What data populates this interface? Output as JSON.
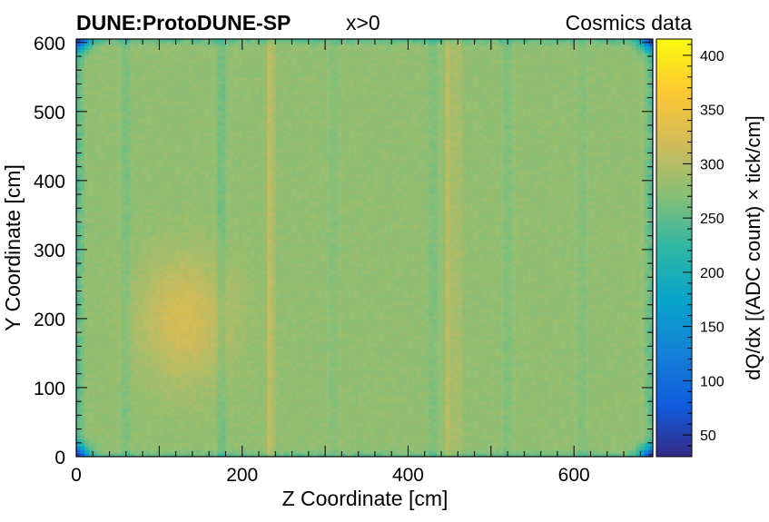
{
  "header": {
    "experiment": "DUNE:ProtoDUNE-SP",
    "selection": "x>0",
    "dataset": "Cosmics data"
  },
  "chart_data": {
    "type": "heatmap",
    "xlabel": "Z Coordinate [cm]",
    "ylabel": "Y Coordinate [cm]",
    "zlabel": "dQ/dx [(ADC count) × tick/cm]",
    "xlim": [
      0,
      695
    ],
    "ylim": [
      0,
      605
    ],
    "zlim": [
      30,
      415
    ],
    "x_ticks": [
      0,
      200,
      400,
      600
    ],
    "y_ticks": [
      0,
      100,
      200,
      300,
      400,
      500,
      600
    ],
    "z_ticks": [
      50,
      100,
      150,
      200,
      250,
      300,
      350,
      400
    ],
    "colormap": [
      "#352a87",
      "#0f5cdd",
      "#1481d6",
      "#06a4ca",
      "#2eb7a4",
      "#87bf77",
      "#d1bb59",
      "#fec832",
      "#f9fb0e"
    ],
    "grid": false,
    "cell_size_cm": [
      5,
      5
    ],
    "typical_value": 278,
    "features": {
      "bright_columns": [
        {
          "z": 232,
          "delta": 28
        },
        {
          "z": 237,
          "delta": 16
        },
        {
          "z": 447,
          "delta": 26
        },
        {
          "z": 455,
          "delta": 30
        },
        {
          "z": 463,
          "delta": 14
        }
      ],
      "dim_columns": [
        {
          "z": 60,
          "delta": -18
        },
        {
          "z": 175,
          "delta": -24
        },
        {
          "z": 310,
          "delta": -10
        },
        {
          "z": 430,
          "delta": -16
        },
        {
          "z": 520,
          "delta": -14
        },
        {
          "z": 610,
          "delta": -12
        }
      ],
      "bright_region": {
        "z": 130,
        "y": 200,
        "delta": 45
      },
      "low_corners": [
        {
          "z": 0,
          "y": 0
        },
        {
          "z": 695,
          "y": 0
        },
        {
          "z": 0,
          "y": 605
        },
        {
          "z": 695,
          "y": 605
        }
      ]
    }
  }
}
